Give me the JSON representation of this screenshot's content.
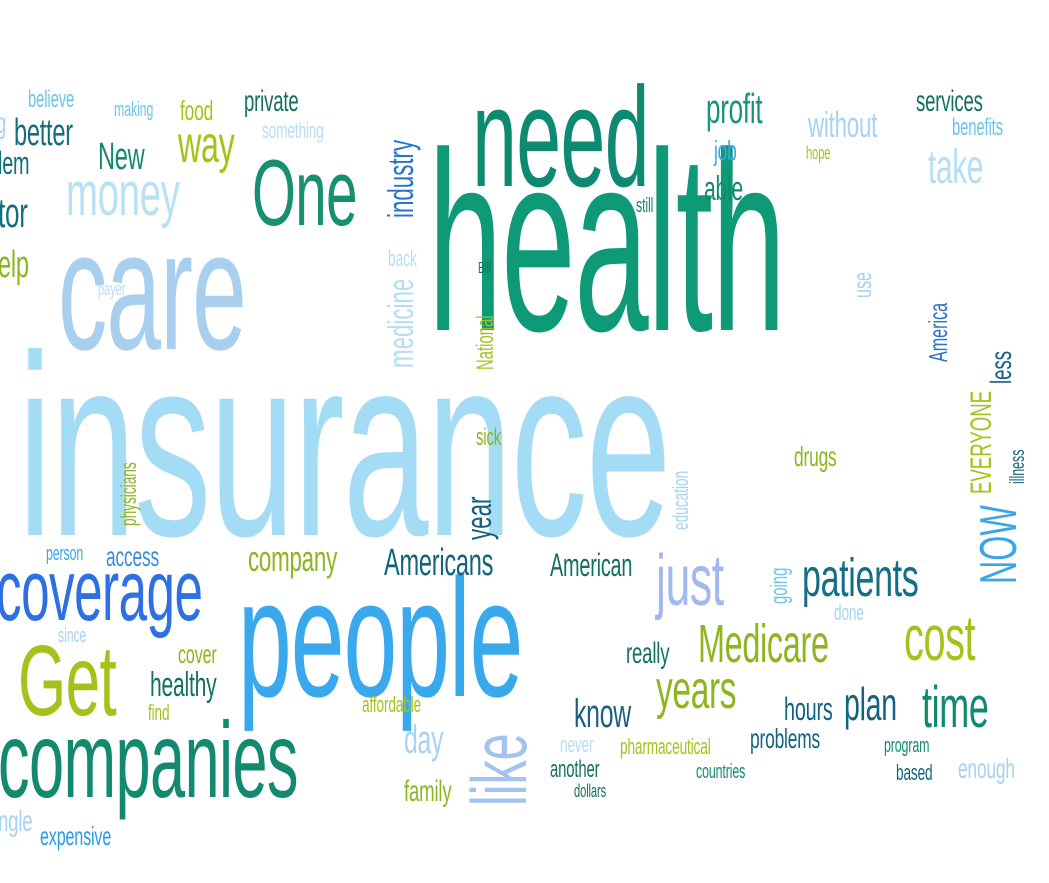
{
  "colors": {
    "teal": "#0e9a76",
    "dark_teal": "#0f7a6e",
    "green": "#1a8f7a",
    "light_blue": "#9ad8f2",
    "pale_blue": "#bfe3f6",
    "sky": "#6cc3ee",
    "blue": "#2b9be8",
    "royal": "#2a63e0",
    "lime": "#a9bf1e",
    "olive": "#8fb020",
    "navy": "#155f86",
    "periwinkle": "#9ab4ee"
  },
  "words": {
    "insurance": "insurance",
    "health": "health",
    "care": "care",
    "people": "people",
    "need": "need",
    "companies": "companies",
    "coverage": "coverage",
    "one": "One",
    "get": "Get",
    "money": "money",
    "just": "just",
    "patients": "patients",
    "medicare": "Medicare",
    "cost": "cost",
    "years": "years",
    "time": "time",
    "like": "like",
    "plan": "plan",
    "know": "know",
    "profit": "profit",
    "without": "without",
    "take": "take",
    "services": "services",
    "benefits": "benefits",
    "job": "job",
    "able": "able",
    "hope": "hope",
    "still": "still",
    "way": "way",
    "new": "New",
    "better": "better",
    "believe": "believe",
    "making": "making",
    "food": "food",
    "private": "private",
    "something": "something",
    "industry": "industry",
    "back": "back",
    "medicine": "medicine",
    "payer": "payer",
    "bill": "Bill",
    "national": "National",
    "use": "use",
    "america": "America",
    "less": "less",
    "everyone": "EVERYONE",
    "illness": "illness",
    "now": "NOW",
    "sick": "sick",
    "drugs": "drugs",
    "education": "education",
    "physicians": "physicians",
    "year": "year",
    "person": "person",
    "access": "access",
    "company": "company",
    "americans": "Americans",
    "american": "American",
    "going": "going",
    "done": "done",
    "since": "since",
    "cover": "cover",
    "healthy": "healthy",
    "find": "find",
    "affordable": "affordable",
    "day": "day",
    "family": "family",
    "never": "never",
    "pharmaceutical": "pharmaceutical",
    "another": "another",
    "dollars": "dollars",
    "countries": "countries",
    "problems": "problems",
    "hours": "hours",
    "really": "really",
    "program": "program",
    "based": "based",
    "enough": "enough",
    "expensive": "expensive",
    "ngle": "ngle",
    "tor": "tor",
    "elp": "elp",
    "lem": "lem",
    "g": "g"
  }
}
